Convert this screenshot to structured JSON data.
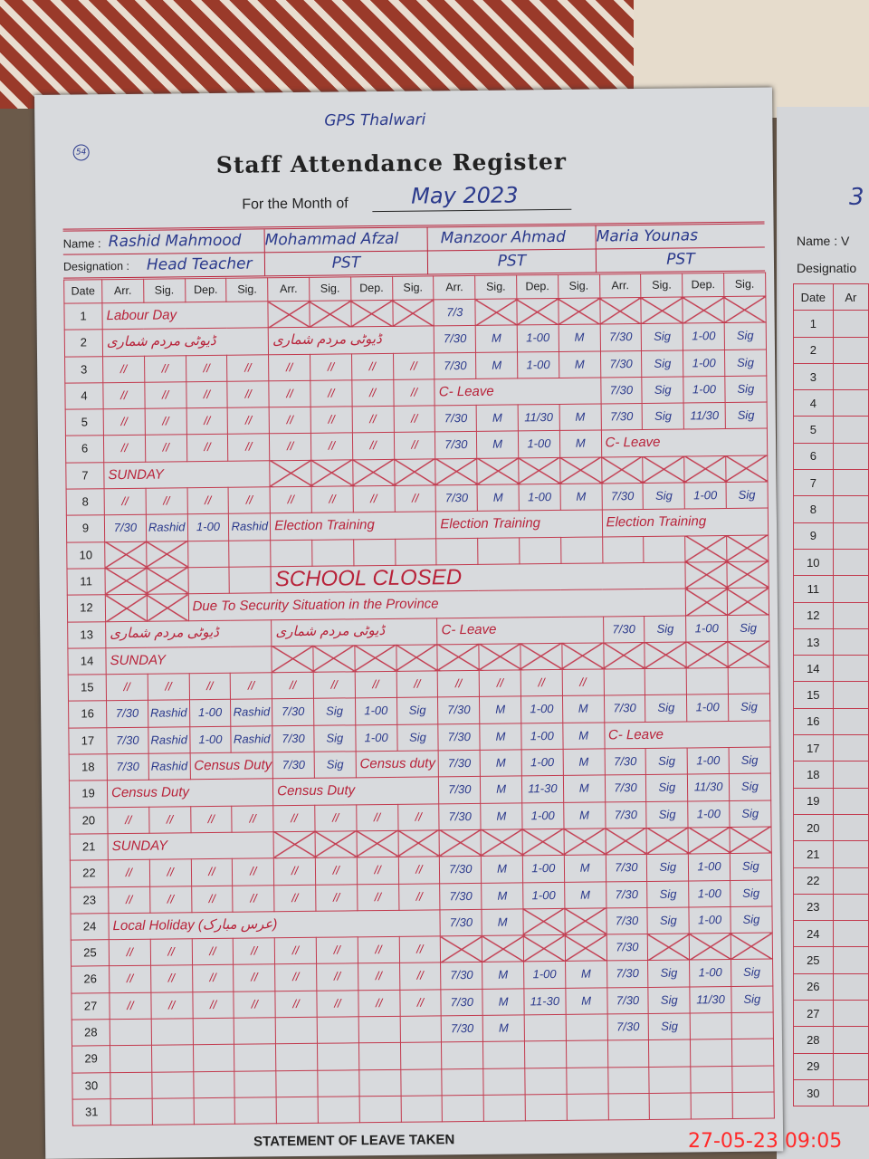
{
  "school": "GPS Thalwari",
  "page_number": "54",
  "title": "Staff Attendance Register",
  "month_label": "For the Month of",
  "month": "May 2023",
  "name_label": "Name :",
  "designation_label": "Designation :",
  "staff": [
    {
      "name": "Rashid Mahmood",
      "designation": "Head Teacher"
    },
    {
      "name": "Mohammad Afzal",
      "designation": "PST"
    },
    {
      "name": "Manzoor Ahmad",
      "designation": "PST"
    },
    {
      "name": "Maria Younas",
      "designation": "PST"
    }
  ],
  "columns": [
    "Date",
    "Arr.",
    "Sig.",
    "Dep.",
    "Sig.",
    "Arr.",
    "Sig.",
    "Dep.",
    "Sig.",
    "Arr.",
    "Sig.",
    "Dep.",
    "Sig.",
    "Arr.",
    "Sig.",
    "Dep.",
    "Sig."
  ],
  "ink_colors": {
    "blue": "#2b3a8c",
    "red": "#b8233a"
  },
  "rows": [
    {
      "date": "1",
      "cells": [
        "Labour Day",
        "",
        "",
        "",
        "x",
        "x",
        "x",
        "x",
        "7/3",
        "x",
        "x",
        "x",
        "x",
        "x",
        "x",
        "x"
      ],
      "notes": [
        0
      ]
    },
    {
      "date": "2",
      "cells": [
        "ڈیوٹی مردم شماری",
        "",
        "",
        "",
        "ڈیوٹی مردم شماری",
        "",
        "",
        "",
        "7/30",
        "M",
        "1-00",
        "M",
        "7/30",
        "Sig",
        "1-00",
        "Sig"
      ],
      "notes": [
        0,
        4
      ]
    },
    {
      "date": "3",
      "cells": [
        "//",
        "//",
        "//",
        "//",
        "//",
        "//",
        "//",
        "//",
        "7/30",
        "M",
        "1-00",
        "M",
        "7/30",
        "Sig",
        "1-00",
        "Sig"
      ]
    },
    {
      "date": "4",
      "cells": [
        "//",
        "//",
        "//",
        "//",
        "//",
        "//",
        "//",
        "//",
        "C- Leave",
        "",
        "",
        "",
        "7/30",
        "Sig",
        "1-00",
        "Sig"
      ],
      "notes": [
        8
      ]
    },
    {
      "date": "5",
      "cells": [
        "//",
        "//",
        "//",
        "//",
        "//",
        "//",
        "//",
        "//",
        "7/30",
        "M",
        "11/30",
        "M",
        "7/30",
        "Sig",
        "11/30",
        "Sig"
      ]
    },
    {
      "date": "6",
      "cells": [
        "//",
        "//",
        "//",
        "//",
        "//",
        "//",
        "//",
        "//",
        "7/30",
        "M",
        "1-00",
        "M",
        "C- Leave",
        "",
        "",
        ""
      ],
      "notes": [
        12
      ]
    },
    {
      "date": "7",
      "cells": [
        "SUNDAY",
        "",
        "",
        "",
        "x",
        "x",
        "x",
        "x",
        "x",
        "x",
        "x",
        "x",
        "x",
        "x",
        "x",
        "x"
      ],
      "notes": [
        0
      ]
    },
    {
      "date": "8",
      "cells": [
        "//",
        "//",
        "//",
        "//",
        "//",
        "//",
        "//",
        "//",
        "7/30",
        "M",
        "1-00",
        "M",
        "7/30",
        "Sig",
        "1-00",
        "Sig"
      ]
    },
    {
      "date": "9",
      "cells": [
        "7/30",
        "Rashid",
        "1-00",
        "Rashid",
        "Election Training",
        "",
        "",
        "",
        "Election Training",
        "",
        "",
        "",
        "Election Training",
        "",
        "",
        ""
      ],
      "notes": [
        4,
        8,
        12
      ]
    },
    {
      "date": "10",
      "cells": [
        "x",
        "x",
        "",
        "",
        "",
        "",
        "",
        "",
        "",
        "",
        "",
        "",
        "",
        "",
        "x",
        "x"
      ]
    },
    {
      "date": "11",
      "cells": [
        "x",
        "x",
        "",
        "",
        "SCHOOL CLOSED",
        "",
        "",
        "",
        "",
        "",
        "",
        "",
        "",
        "",
        "x",
        "x"
      ],
      "notes": [
        4
      ]
    },
    {
      "date": "12",
      "cells": [
        "x",
        "x",
        "Due To Security Situation in the Province",
        "",
        "",
        "",
        "",
        "",
        "",
        "",
        "",
        "",
        "",
        "",
        "x",
        "x"
      ],
      "notes": [
        2
      ]
    },
    {
      "date": "13",
      "cells": [
        "ڈیوٹی مردم شماری",
        "",
        "",
        "",
        "ڈیوٹی مردم شماری",
        "",
        "",
        "",
        "C- Leave",
        "",
        "",
        "",
        "7/30",
        "Sig",
        "1-00",
        "Sig"
      ],
      "notes": [
        0,
        4,
        8
      ]
    },
    {
      "date": "14",
      "cells": [
        "SUNDAY",
        "",
        "",
        "",
        "x",
        "x",
        "x",
        "x",
        "x",
        "x",
        "x",
        "x",
        "x",
        "x",
        "x",
        "x"
      ],
      "notes": [
        0
      ]
    },
    {
      "date": "15",
      "cells": [
        "//",
        "//",
        "//",
        "//",
        "//",
        "//",
        "//",
        "//",
        "//",
        "//",
        "//",
        "//",
        "",
        "",
        "",
        ""
      ]
    },
    {
      "date": "16",
      "cells": [
        "7/30",
        "Rashid",
        "1-00",
        "Rashid",
        "7/30",
        "Sig",
        "1-00",
        "Sig",
        "7/30",
        "M",
        "1-00",
        "M",
        "7/30",
        "Sig",
        "1-00",
        "Sig"
      ]
    },
    {
      "date": "17",
      "cells": [
        "7/30",
        "Rashid",
        "1-00",
        "Rashid",
        "7/30",
        "Sig",
        "1-00",
        "Sig",
        "7/30",
        "M",
        "1-00",
        "M",
        "C- Leave",
        "",
        "",
        ""
      ],
      "notes": [
        12
      ]
    },
    {
      "date": "18",
      "cells": [
        "7/30",
        "Rashid",
        "Census Duty",
        "",
        "7/30",
        "Sig",
        "Census duty",
        "",
        "7/30",
        "M",
        "1-00",
        "M",
        "7/30",
        "Sig",
        "1-00",
        "Sig"
      ],
      "notes": [
        2,
        6
      ]
    },
    {
      "date": "19",
      "cells": [
        "Census Duty",
        "",
        "",
        "",
        "Census Duty",
        "",
        "",
        "",
        "7/30",
        "M",
        "11-30",
        "M",
        "7/30",
        "Sig",
        "11/30",
        "Sig"
      ],
      "notes": [
        0,
        4
      ]
    },
    {
      "date": "20",
      "cells": [
        "//",
        "//",
        "//",
        "//",
        "//",
        "//",
        "//",
        "//",
        "7/30",
        "M",
        "1-00",
        "M",
        "7/30",
        "Sig",
        "1-00",
        "Sig"
      ]
    },
    {
      "date": "21",
      "cells": [
        "SUNDAY",
        "",
        "",
        "",
        "x",
        "x",
        "x",
        "x",
        "x",
        "x",
        "x",
        "x",
        "x",
        "x",
        "x",
        "x"
      ],
      "notes": [
        0
      ]
    },
    {
      "date": "22",
      "cells": [
        "//",
        "//",
        "//",
        "//",
        "//",
        "//",
        "//",
        "//",
        "7/30",
        "M",
        "1-00",
        "M",
        "7/30",
        "Sig",
        "1-00",
        "Sig"
      ]
    },
    {
      "date": "23",
      "cells": [
        "//",
        "//",
        "//",
        "//",
        "//",
        "//",
        "//",
        "//",
        "7/30",
        "M",
        "1-00",
        "M",
        "7/30",
        "Sig",
        "1-00",
        "Sig"
      ]
    },
    {
      "date": "24",
      "cells": [
        "Local Holiday (عرس مبارک)",
        "",
        "",
        "",
        "",
        "",
        "",
        "",
        "7/30",
        "M",
        "x",
        "x",
        "7/30",
        "Sig",
        "1-00",
        "Sig"
      ],
      "notes": [
        0
      ]
    },
    {
      "date": "25",
      "cells": [
        "//",
        "//",
        "//",
        "//",
        "//",
        "//",
        "//",
        "//",
        "x",
        "x",
        "x",
        "x",
        "7/30",
        "x",
        "x",
        "x"
      ]
    },
    {
      "date": "26",
      "cells": [
        "//",
        "//",
        "//",
        "//",
        "//",
        "//",
        "//",
        "//",
        "7/30",
        "M",
        "1-00",
        "M",
        "7/30",
        "Sig",
        "1-00",
        "Sig"
      ]
    },
    {
      "date": "27",
      "cells": [
        "//",
        "//",
        "//",
        "//",
        "//",
        "//",
        "//",
        "//",
        "7/30",
        "M",
        "11-30",
        "M",
        "7/30",
        "Sig",
        "11/30",
        "Sig"
      ]
    },
    {
      "date": "28",
      "cells": [
        "",
        "",
        "",
        "",
        "",
        "",
        "",
        "",
        "7/30",
        "M",
        "",
        "",
        "7/30",
        "Sig",
        "",
        ""
      ]
    },
    {
      "date": "29",
      "cells": [
        "",
        "",
        "",
        "",
        "",
        "",
        "",
        "",
        "",
        "",
        "",
        "",
        "",
        "",
        "",
        ""
      ]
    },
    {
      "date": "30",
      "cells": [
        "",
        "",
        "",
        "",
        "",
        "",
        "",
        "",
        "",
        "",
        "",
        "",
        "",
        "",
        "",
        ""
      ]
    },
    {
      "date": "31",
      "cells": [
        "",
        "",
        "",
        "",
        "",
        "",
        "",
        "",
        "",
        "",
        "",
        "",
        "",
        "",
        "",
        ""
      ]
    }
  ],
  "footer": "STATEMENT OF LEAVE TAKEN",
  "timestamp": "27-05-23  09:05",
  "right_page": {
    "number": "3",
    "name_label": "Name : V",
    "designation_label": "Designatio",
    "date_col": "Date",
    "arr_col": "Ar",
    "dates": [
      "1",
      "2",
      "3",
      "4",
      "5",
      "6",
      "7",
      "8",
      "9",
      "10",
      "11",
      "12",
      "13",
      "14",
      "15",
      "16",
      "17",
      "18",
      "19",
      "20",
      "21",
      "22",
      "23",
      "24",
      "25",
      "26",
      "27",
      "28",
      "29",
      "30"
    ]
  }
}
